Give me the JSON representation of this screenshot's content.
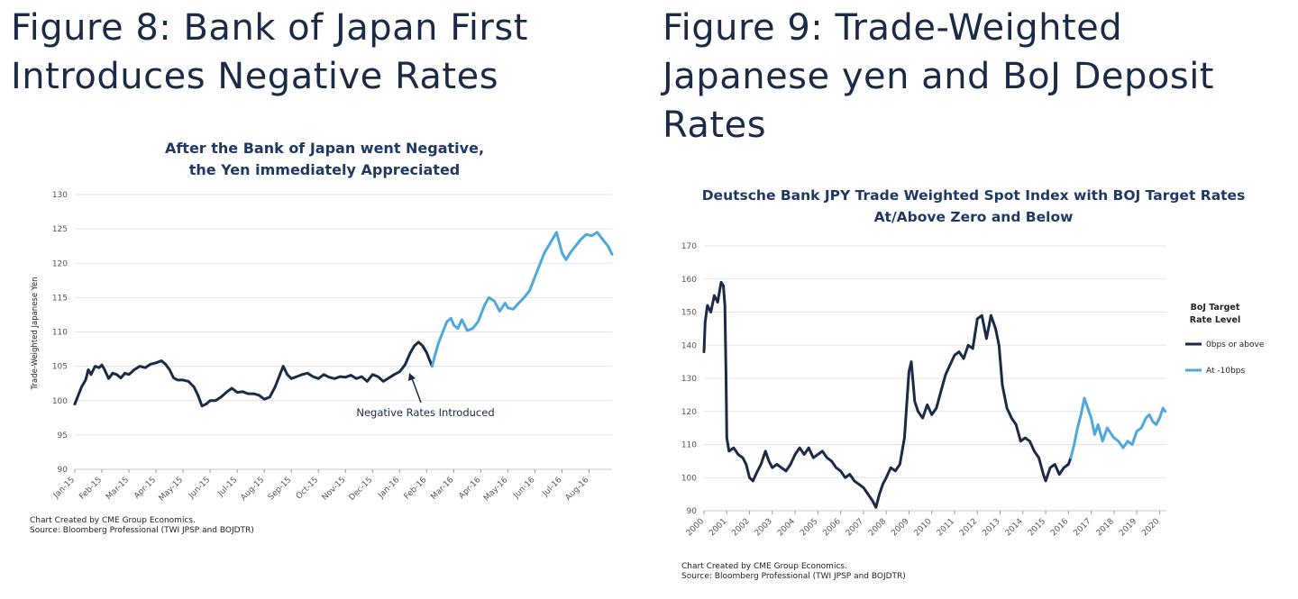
{
  "figure8": {
    "heading_line1": "Figure 8: Bank of Japan First",
    "heading_line2": "Introduces Negative Rates"
  },
  "figure9": {
    "heading_line1": "Figure 9: Trade-Weighted",
    "heading_line2": "Japanese yen and BoJ Deposit",
    "heading_line3": "Rates"
  },
  "colors": {
    "dark": "#1b2a47",
    "light": "#4ea7dd",
    "grid": "#e3e3e3"
  },
  "chart_data": [
    {
      "type": "line",
      "title_line1": "After the Bank of Japan went Negative,",
      "title_line2": "the Yen immediately Appreciated",
      "ylabel": "Trade-Weighted Japanese Yen",
      "xlabel": "",
      "ylim": [
        90,
        130
      ],
      "yticks": [
        90,
        95,
        100,
        105,
        110,
        115,
        120,
        125,
        130
      ],
      "xticks": [
        "Jan-15",
        "Feb-15",
        "Mar-15",
        "Apr-15",
        "May-15",
        "Jun-15",
        "Jul-15",
        "Aug-15",
        "Sep-15",
        "Oct-15",
        "Nov-15",
        "Dec-15",
        "Jan-16",
        "Feb-16",
        "Mar-16",
        "Apr-16",
        "May-16",
        "Jun-16",
        "Jul-16",
        "Aug-16"
      ],
      "grid": true,
      "annotation": "Negative Rates Introduced",
      "note_line1": "Chart Created by CME Group Economics.",
      "note_line2": "Source: Bloomberg Professional (TWI JPSP and BOJDTR)",
      "series": [
        {
          "color": "#1b2a47",
          "points": [
            [
              0.0,
              99.5
            ],
            [
              0.1,
              100.5
            ],
            [
              0.25,
              102
            ],
            [
              0.4,
              103
            ],
            [
              0.5,
              104.5
            ],
            [
              0.6,
              103.8
            ],
            [
              0.75,
              105
            ],
            [
              0.9,
              104.8
            ],
            [
              1.0,
              105.2
            ],
            [
              1.1,
              104.5
            ],
            [
              1.25,
              103.2
            ],
            [
              1.4,
              104
            ],
            [
              1.55,
              103.8
            ],
            [
              1.7,
              103.3
            ],
            [
              1.85,
              104
            ],
            [
              2.0,
              103.8
            ],
            [
              2.2,
              104.5
            ],
            [
              2.4,
              105
            ],
            [
              2.6,
              104.8
            ],
            [
              2.8,
              105.3
            ],
            [
              3.0,
              105.5
            ],
            [
              3.2,
              105.8
            ],
            [
              3.35,
              105.3
            ],
            [
              3.5,
              104.5
            ],
            [
              3.65,
              103.3
            ],
            [
              3.8,
              103
            ],
            [
              4.0,
              103
            ],
            [
              4.2,
              102.8
            ],
            [
              4.4,
              102
            ],
            [
              4.55,
              100.8
            ],
            [
              4.7,
              99.2
            ],
            [
              4.85,
              99.5
            ],
            [
              5.0,
              100
            ],
            [
              5.2,
              100
            ],
            [
              5.4,
              100.5
            ],
            [
              5.6,
              101.2
            ],
            [
              5.8,
              101.8
            ],
            [
              6.0,
              101.2
            ],
            [
              6.2,
              101.3
            ],
            [
              6.4,
              101
            ],
            [
              6.6,
              101
            ],
            [
              6.8,
              100.8
            ],
            [
              7.0,
              100.2
            ],
            [
              7.2,
              100.5
            ],
            [
              7.4,
              102
            ],
            [
              7.55,
              103.5
            ],
            [
              7.7,
              105
            ],
            [
              7.85,
              103.8
            ],
            [
              8.0,
              103.2
            ],
            [
              8.2,
              103.5
            ],
            [
              8.4,
              103.8
            ],
            [
              8.6,
              104
            ],
            [
              8.8,
              103.5
            ],
            [
              9.0,
              103.2
            ],
            [
              9.2,
              103.8
            ],
            [
              9.4,
              103.4
            ],
            [
              9.6,
              103.2
            ],
            [
              9.8,
              103.5
            ],
            [
              10.0,
              103.4
            ],
            [
              10.2,
              103.7
            ],
            [
              10.4,
              103.2
            ],
            [
              10.6,
              103.5
            ],
            [
              10.8,
              102.8
            ],
            [
              11.0,
              103.8
            ],
            [
              11.2,
              103.5
            ],
            [
              11.4,
              102.8
            ],
            [
              11.6,
              103.3
            ],
            [
              11.8,
              103.8
            ],
            [
              12.0,
              104.2
            ],
            [
              12.2,
              105.2
            ],
            [
              12.4,
              107
            ],
            [
              12.55,
              108
            ],
            [
              12.7,
              108.5
            ],
            [
              12.85,
              108
            ],
            [
              13.0,
              107
            ],
            [
              13.1,
              106
            ],
            [
              13.2,
              105
            ]
          ]
        },
        {
          "color": "#4ea7dd",
          "points": [
            [
              13.2,
              105
            ],
            [
              13.3,
              106.5
            ],
            [
              13.45,
              108.5
            ],
            [
              13.6,
              110
            ],
            [
              13.75,
              111.5
            ],
            [
              13.9,
              112
            ],
            [
              14.0,
              111
            ],
            [
              14.15,
              110.5
            ],
            [
              14.3,
              111.8
            ],
            [
              14.5,
              110.2
            ],
            [
              14.7,
              110.5
            ],
            [
              14.9,
              111.5
            ],
            [
              15.0,
              112.5
            ],
            [
              15.15,
              114
            ],
            [
              15.3,
              115
            ],
            [
              15.5,
              114.5
            ],
            [
              15.7,
              113
            ],
            [
              15.9,
              114.2
            ],
            [
              16.0,
              113.5
            ],
            [
              16.2,
              113.3
            ],
            [
              16.4,
              114.2
            ],
            [
              16.6,
              115
            ],
            [
              16.8,
              116
            ],
            [
              17.0,
              118
            ],
            [
              17.2,
              120
            ],
            [
              17.35,
              121.5
            ],
            [
              17.5,
              122.5
            ],
            [
              17.65,
              123.5
            ],
            [
              17.8,
              124.5
            ],
            [
              17.9,
              123
            ],
            [
              18.0,
              121.5
            ],
            [
              18.15,
              120.5
            ],
            [
              18.3,
              121.5
            ],
            [
              18.5,
              122.5
            ],
            [
              18.7,
              123.5
            ],
            [
              18.9,
              124.2
            ],
            [
              19.1,
              124
            ],
            [
              19.3,
              124.5
            ],
            [
              19.5,
              123.5
            ],
            [
              19.7,
              122.5
            ],
            [
              19.85,
              121.3
            ]
          ]
        }
      ]
    },
    {
      "type": "line",
      "title_line1": "Deutsche Bank JPY Trade Weighted Spot Index with BOJ Target Rates",
      "title_line2": "At/Above Zero and Below",
      "ylabel": "",
      "xlabel": "",
      "ylim": [
        90,
        170
      ],
      "yticks": [
        90,
        100,
        110,
        120,
        130,
        140,
        150,
        160,
        170
      ],
      "xticks": [
        "2000",
        "2001",
        "2002",
        "2003",
        "2004",
        "2005",
        "2006",
        "2007",
        "2008",
        "2009",
        "2010",
        "2011",
        "2012",
        "2013",
        "2014",
        "2015",
        "2016",
        "2017",
        "2018",
        "2019",
        "2020"
      ],
      "grid": true,
      "legend_title_line1": "BoJ Target",
      "legend_title_line2": "Rate Level",
      "legend_position": "right",
      "note_line1": "Chart Created by CME Group Economics.",
      "note_line2": "Source: Bloomberg Professional (TWI JPSP and BOJDTR)",
      "series": [
        {
          "name": "0bps or above",
          "color": "#1b2a47",
          "points": [
            [
              2000.0,
              138
            ],
            [
              2000.05,
              147
            ],
            [
              2000.15,
              152
            ],
            [
              2000.3,
              150
            ],
            [
              2000.45,
              155
            ],
            [
              2000.6,
              153
            ],
            [
              2000.75,
              159
            ],
            [
              2000.85,
              158
            ],
            [
              2000.92,
              152
            ],
            [
              2000.97,
              130
            ],
            [
              2001.0,
              112
            ],
            [
              2001.1,
              108
            ],
            [
              2001.3,
              109
            ],
            [
              2001.5,
              107
            ],
            [
              2001.7,
              106
            ],
            [
              2001.85,
              104
            ],
            [
              2002.0,
              100
            ],
            [
              2002.15,
              99
            ],
            [
              2002.35,
              102
            ],
            [
              2002.5,
              104
            ],
            [
              2002.7,
              108
            ],
            [
              2002.85,
              105
            ],
            [
              2003.0,
              103
            ],
            [
              2003.2,
              104
            ],
            [
              2003.4,
              103
            ],
            [
              2003.6,
              102
            ],
            [
              2003.8,
              104
            ],
            [
              2004.0,
              107
            ],
            [
              2004.2,
              109
            ],
            [
              2004.4,
              107
            ],
            [
              2004.6,
              109
            ],
            [
              2004.8,
              106
            ],
            [
              2005.0,
              107
            ],
            [
              2005.2,
              108
            ],
            [
              2005.4,
              106
            ],
            [
              2005.6,
              105
            ],
            [
              2005.8,
              103
            ],
            [
              2006.0,
              102
            ],
            [
              2006.2,
              100
            ],
            [
              2006.4,
              101
            ],
            [
              2006.6,
              99
            ],
            [
              2006.8,
              98
            ],
            [
              2007.0,
              97
            ],
            [
              2007.2,
              95
            ],
            [
              2007.4,
              93
            ],
            [
              2007.55,
              91
            ],
            [
              2007.7,
              95
            ],
            [
              2007.85,
              98
            ],
            [
              2008.0,
              100
            ],
            [
              2008.2,
              103
            ],
            [
              2008.4,
              102
            ],
            [
              2008.6,
              104
            ],
            [
              2008.8,
              112
            ],
            [
              2008.9,
              122
            ],
            [
              2009.0,
              132
            ],
            [
              2009.1,
              135
            ],
            [
              2009.25,
              123
            ],
            [
              2009.4,
              120
            ],
            [
              2009.6,
              118
            ],
            [
              2009.8,
              122
            ],
            [
              2010.0,
              119
            ],
            [
              2010.2,
              121
            ],
            [
              2010.4,
              126
            ],
            [
              2010.6,
              131
            ],
            [
              2010.8,
              134
            ],
            [
              2011.0,
              137
            ],
            [
              2011.2,
              138
            ],
            [
              2011.4,
              136
            ],
            [
              2011.6,
              140
            ],
            [
              2011.8,
              139
            ],
            [
              2012.0,
              148
            ],
            [
              2012.2,
              149
            ],
            [
              2012.4,
              142
            ],
            [
              2012.6,
              149
            ],
            [
              2012.8,
              145
            ],
            [
              2012.95,
              140
            ],
            [
              2013.1,
              128
            ],
            [
              2013.3,
              121
            ],
            [
              2013.5,
              118
            ],
            [
              2013.7,
              116
            ],
            [
              2013.9,
              111
            ],
            [
              2014.1,
              112
            ],
            [
              2014.3,
              111
            ],
            [
              2014.5,
              108
            ],
            [
              2014.7,
              106
            ],
            [
              2014.9,
              101
            ],
            [
              2015.0,
              99
            ],
            [
              2015.2,
              103
            ],
            [
              2015.4,
              104
            ],
            [
              2015.6,
              101
            ],
            [
              2015.8,
              103
            ],
            [
              2016.0,
              104
            ],
            [
              2016.1,
              106
            ]
          ]
        },
        {
          "name": "At -10bps",
          "color": "#4ea7dd",
          "points": [
            [
              2016.1,
              106
            ],
            [
              2016.25,
              110
            ],
            [
              2016.4,
              115
            ],
            [
              2016.55,
              119
            ],
            [
              2016.7,
              124
            ],
            [
              2016.85,
              121
            ],
            [
              2017.0,
              118
            ],
            [
              2017.15,
              113
            ],
            [
              2017.3,
              116
            ],
            [
              2017.5,
              111
            ],
            [
              2017.7,
              115
            ],
            [
              2017.9,
              113
            ],
            [
              2018.0,
              112
            ],
            [
              2018.2,
              111
            ],
            [
              2018.4,
              109
            ],
            [
              2018.6,
              111
            ],
            [
              2018.8,
              110
            ],
            [
              2019.0,
              114
            ],
            [
              2019.2,
              115
            ],
            [
              2019.4,
              118
            ],
            [
              2019.55,
              119
            ],
            [
              2019.7,
              117
            ],
            [
              2019.85,
              116
            ],
            [
              2020.0,
              118
            ],
            [
              2020.15,
              121
            ],
            [
              2020.25,
              120
            ]
          ]
        }
      ]
    }
  ]
}
